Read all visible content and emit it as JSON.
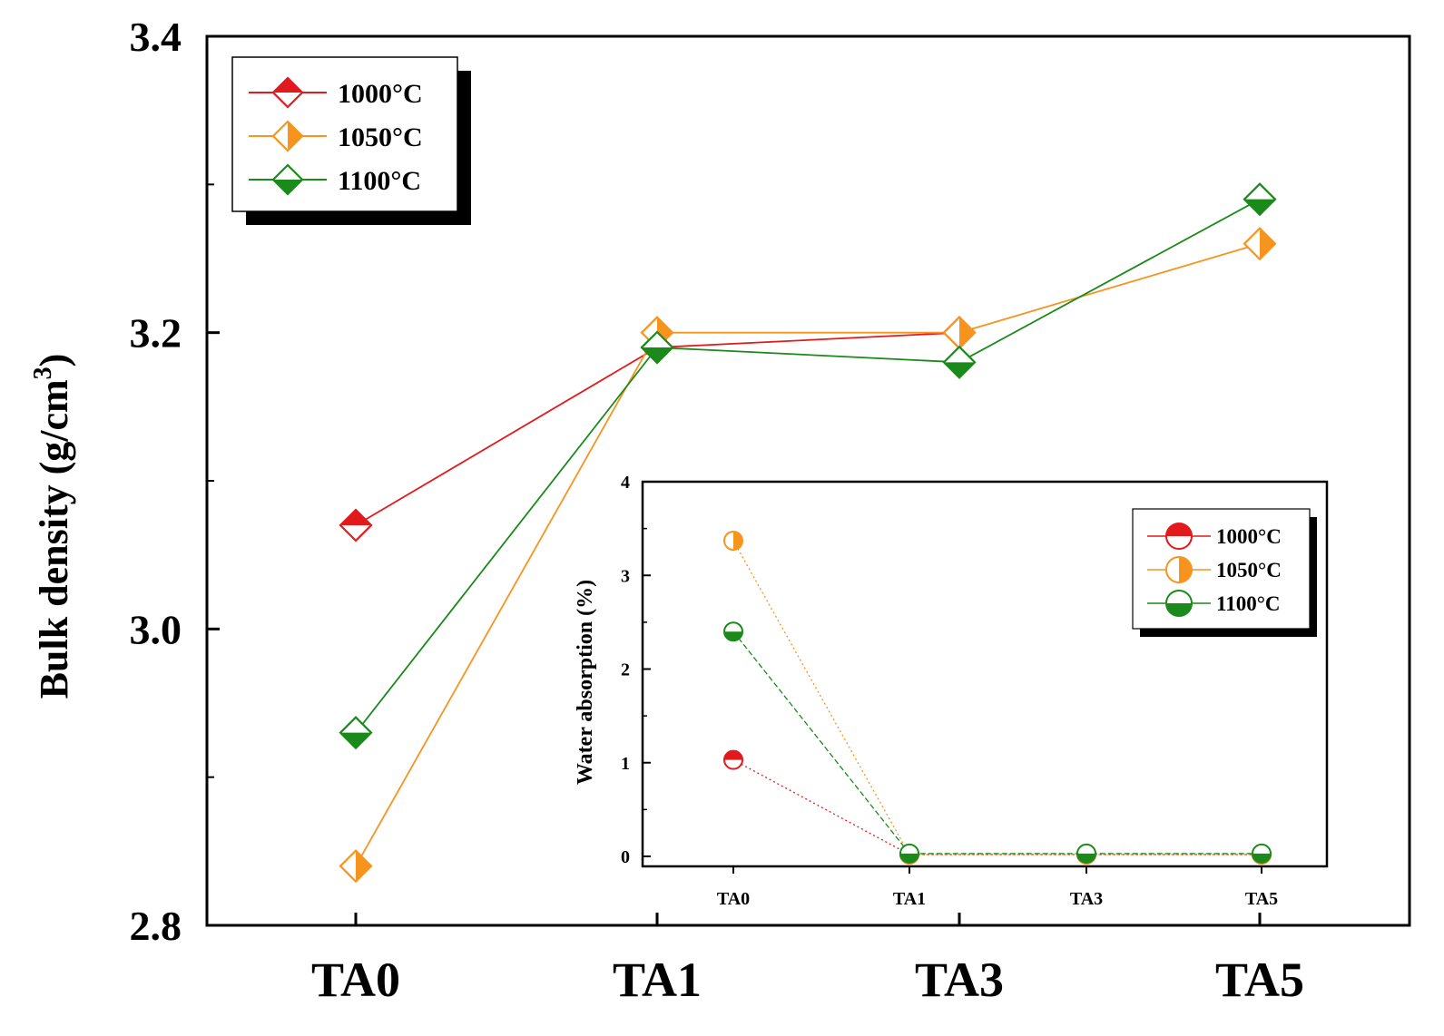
{
  "chart_data": [
    {
      "type": "line",
      "categories": [
        "TA0",
        "TA1",
        "TA3",
        "TA5"
      ],
      "ylabel": "Bulk density (g/cm",
      "ylabel_sup": "3",
      "ylabel_close": ")",
      "ylim": [
        2.8,
        3.4
      ],
      "yticks": [
        "2.8",
        "3.0",
        "3.2",
        "3.4"
      ],
      "ytick_values": [
        2.8,
        3.0,
        3.2,
        3.4
      ],
      "legend_position": "top-left",
      "grid": false,
      "series": [
        {
          "name": "1000°C",
          "color": "#e31a1c",
          "marker": "diamond-top-half",
          "values": [
            3.07,
            3.19,
            3.2,
            null
          ]
        },
        {
          "name": "1050°C",
          "color": "#f7941d",
          "marker": "diamond-right-half",
          "values": [
            2.84,
            3.2,
            3.2,
            3.26
          ]
        },
        {
          "name": "1100°C",
          "color": "#1a8a1a",
          "marker": "diamond-bottom-half",
          "values": [
            2.93,
            3.19,
            3.18,
            3.29
          ]
        }
      ]
    },
    {
      "type": "line",
      "inset": true,
      "categories": [
        "TA0",
        "TA1",
        "TA3",
        "TA5"
      ],
      "ylabel": "Water absorption (%)",
      "ylim": [
        0,
        4
      ],
      "yticks": [
        "0",
        "1",
        "2",
        "3",
        "4"
      ],
      "ytick_values": [
        0,
        1,
        2,
        3,
        4
      ],
      "legend_position": "top-right",
      "grid": false,
      "series": [
        {
          "name": "1000°C",
          "color": "#e31a1c",
          "marker": "circle-top-half",
          "values": [
            1.03,
            0.02,
            0.02,
            0.02
          ]
        },
        {
          "name": "1050°C",
          "color": "#f7941d",
          "marker": "circle-right-half",
          "values": [
            3.37,
            0.02,
            0.02,
            0.02
          ]
        },
        {
          "name": "1100°C",
          "color": "#1a8a1a",
          "marker": "circle-bottom-half",
          "values": [
            2.4,
            0.03,
            0.03,
            0.03
          ]
        }
      ]
    }
  ]
}
